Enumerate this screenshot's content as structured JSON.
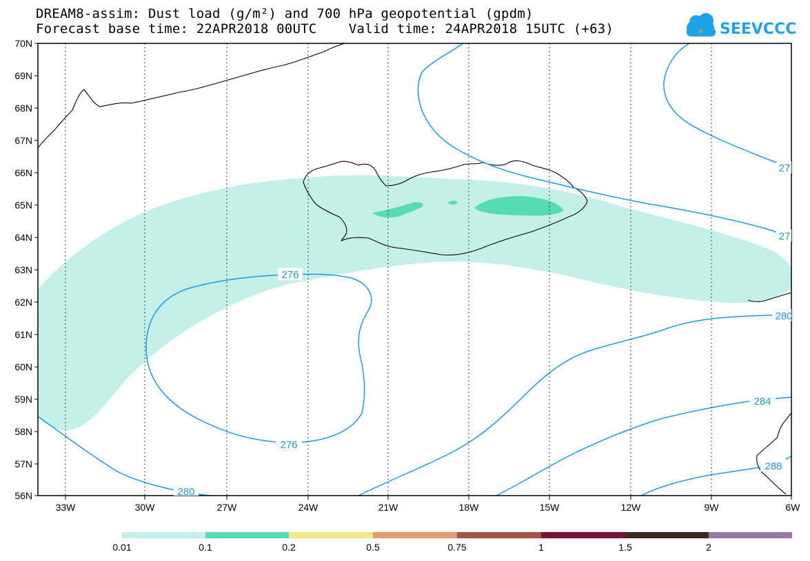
{
  "header": {
    "title_line1": "DREAM8-assim: Dust load (g/m²) and 700 hPa geopotential (gpdm)",
    "title_line2": "Forecast base time: 22APR2018 00UTC    Valid time: 24APR2018 15UTC (+63)"
  },
  "logo": {
    "text": "SEEVCCC",
    "icon": "cloud-logo-icon"
  },
  "map": {
    "lat_labels": [
      "70N",
      "69N",
      "68N",
      "67N",
      "66N",
      "65N",
      "64N",
      "63N",
      "62N",
      "61N",
      "60N",
      "59N",
      "58N",
      "57N",
      "56N"
    ],
    "lon_labels": [
      "33W",
      "30W",
      "27W",
      "24W",
      "21W",
      "18W",
      "15W",
      "12W",
      "9W",
      "6W"
    ],
    "contour_labels": [
      {
        "text": "276",
        "id": "c276a"
      },
      {
        "text": "276",
        "id": "c276b"
      },
      {
        "text": "280",
        "id": "c280a"
      },
      {
        "text": "280",
        "id": "c280b"
      },
      {
        "text": "284",
        "id": "c284"
      },
      {
        "text": "288",
        "id": "c288"
      },
      {
        "text": "27",
        "id": "c27a"
      },
      {
        "text": "27",
        "id": "c27b"
      }
    ]
  },
  "legend": {
    "labels": [
      "0.01",
      "0.1",
      "0.2",
      "0.5",
      "0.75",
      "1",
      "1.5",
      "2"
    ],
    "colors": [
      "#c5f0ea",
      "#56dcb2",
      "#f5e887",
      "#e89a74",
      "#a85544",
      "#7c1133",
      "#3a2a20",
      "#957aab"
    ]
  },
  "colors": {
    "contour": "#1a9ae6",
    "dust_low": "#c5f0ea",
    "dust_mid": "#56dcb2"
  }
}
